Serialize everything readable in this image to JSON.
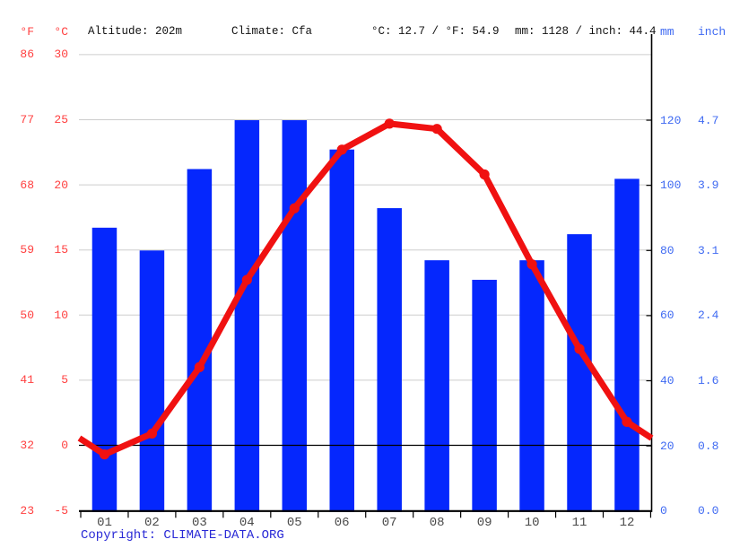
{
  "header": {
    "fahrenheit_unit": "°F",
    "celsius_unit": "°C",
    "altitude": "Altitude: 202m",
    "climate": "Climate: Cfa",
    "temperature_summary": "°C: 12.7 / °F: 54.9",
    "precipitation_summary": "mm: 1128 / inch: 44.4",
    "mm_unit": "mm",
    "inch_unit": "inch"
  },
  "footer": {
    "copyright": "Copyright: CLIMATE-DATA.ORG"
  },
  "colors": {
    "bar_blue": "#0527fd",
    "line_red": "#f01111",
    "temp_axis_text": "#ff4040",
    "precip_axis_text": "#3f6af2",
    "month_text": "#4a4a4a",
    "header_text": "#111111",
    "copyright_blue": "#2929d6",
    "gridline": "#cdcdcd",
    "axis_black": "#000000"
  },
  "chart_data": {
    "type": "combo",
    "title": "",
    "categories": [
      "01",
      "02",
      "03",
      "04",
      "05",
      "06",
      "07",
      "08",
      "09",
      "10",
      "11",
      "12"
    ],
    "series": [
      {
        "name": "Precipitation",
        "type": "bar",
        "unit": "mm",
        "axis": "right",
        "values": [
          87,
          80,
          105,
          120,
          120,
          111,
          93,
          77,
          71,
          77,
          85,
          102
        ]
      },
      {
        "name": "Temperature",
        "type": "line",
        "unit": "°C",
        "axis": "left",
        "values": [
          -0.7,
          0.9,
          6.0,
          12.7,
          18.2,
          22.7,
          24.7,
          24.3,
          20.8,
          13.9,
          7.4,
          1.8
        ]
      }
    ],
    "left_axis": {
      "f_ticks": [
        86,
        77,
        68,
        59,
        50,
        41,
        32,
        23
      ],
      "c_ticks": [
        30,
        25,
        20,
        15,
        10,
        5,
        0,
        -5
      ],
      "range_c": [
        -5,
        30
      ]
    },
    "right_axis": {
      "mm_ticks": [
        120,
        100,
        80,
        60,
        40,
        20,
        0
      ],
      "inch_ticks": [
        "4.7",
        "3.9",
        "3.1",
        "2.4",
        "1.6",
        "0.8",
        "0.0"
      ],
      "range_mm": [
        0,
        140
      ]
    },
    "grid": true,
    "legend": "none",
    "line_extends_to_plot_edges": true
  }
}
